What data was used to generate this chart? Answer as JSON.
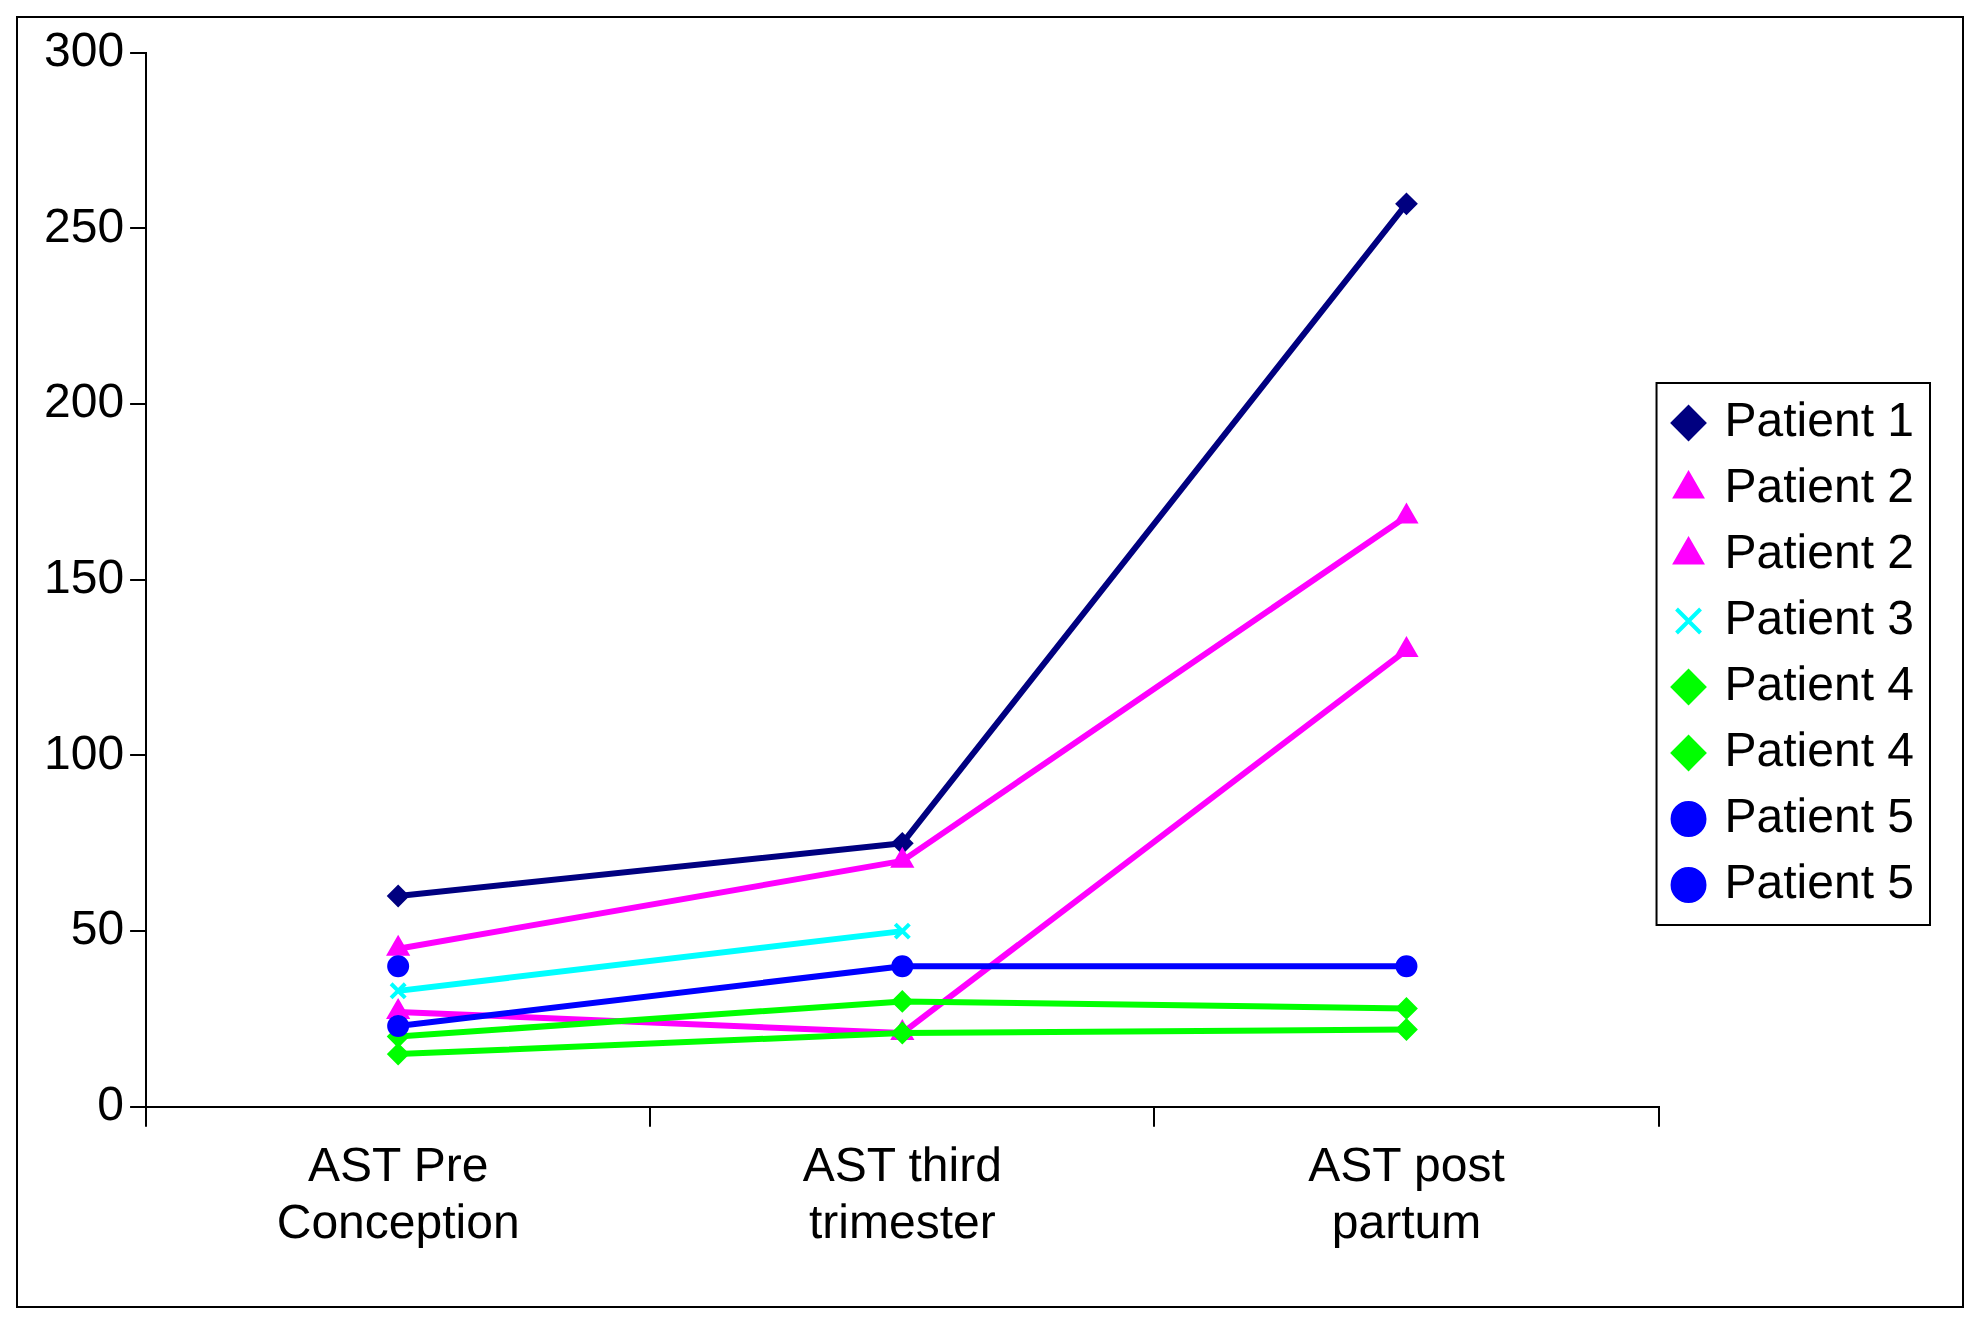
{
  "chart_data": {
    "type": "line",
    "categories": [
      "AST Pre Conception",
      "AST third trimester",
      "AST post partum"
    ],
    "ylim": [
      0,
      300
    ],
    "yticks": [
      0,
      50,
      100,
      150,
      200,
      250,
      300
    ],
    "grid": false,
    "legend": "right",
    "series": [
      {
        "name": "Patient 1",
        "color": "#000080",
        "marker": "diamond",
        "values": [
          60,
          75,
          257
        ]
      },
      {
        "name": "Patient 2",
        "color": "#ff00ff",
        "marker": "triangle",
        "values": [
          45,
          70,
          168
        ]
      },
      {
        "name": "Patient 2",
        "color": "#ff00ff",
        "marker": "triangle",
        "values": [
          27,
          21,
          130
        ]
      },
      {
        "name": "Patient 3",
        "color": "#00ffff",
        "marker": "cross",
        "values": [
          33,
          50,
          null
        ]
      },
      {
        "name": "Patient 4",
        "color": "#00ff00",
        "marker": "diamond",
        "values": [
          20,
          30,
          28
        ]
      },
      {
        "name": "Patient 4",
        "color": "#00ff00",
        "marker": "diamond",
        "values": [
          15,
          21,
          22
        ]
      },
      {
        "name": "Patient 5",
        "color": "#0000ff",
        "marker": "circle",
        "values": [
          40,
          null,
          null
        ]
      },
      {
        "name": "Patient 5",
        "color": "#0000ff",
        "marker": "circle",
        "values": [
          23,
          40,
          40
        ]
      }
    ]
  }
}
